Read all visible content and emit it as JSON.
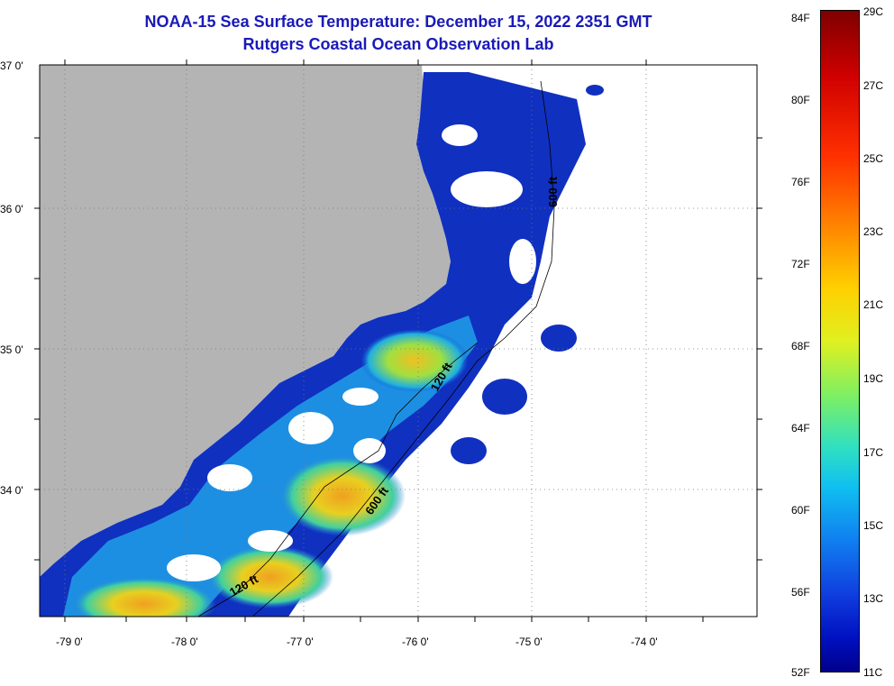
{
  "title": {
    "line1": "NOAA-15 Sea Surface Temperature:  December 15, 2022 2351 GMT",
    "line2": "Rutgers Coastal Ocean Observation Lab"
  },
  "map": {
    "lat_labels": [
      "37 0'",
      "36 0'",
      "35 0'",
      "34 0'"
    ],
    "lon_labels": [
      "-79 0'",
      "-78 0'",
      "-77 0'",
      "-76 0'",
      "-75 0'",
      "-74 0'"
    ],
    "contours": [
      "600 ft",
      "120 ft",
      "600 ft",
      "120 ft"
    ],
    "land_color": "#b4b4b4",
    "nodata_color": "#ffffff"
  },
  "colorbar": {
    "fahrenheit": [
      "84F",
      "80F",
      "76F",
      "72F",
      "68F",
      "64F",
      "60F",
      "56F",
      "52F"
    ],
    "celsius": [
      "29C",
      "27C",
      "25C",
      "23C",
      "21C",
      "19C",
      "17C",
      "15C",
      "13C",
      "11C"
    ]
  }
}
